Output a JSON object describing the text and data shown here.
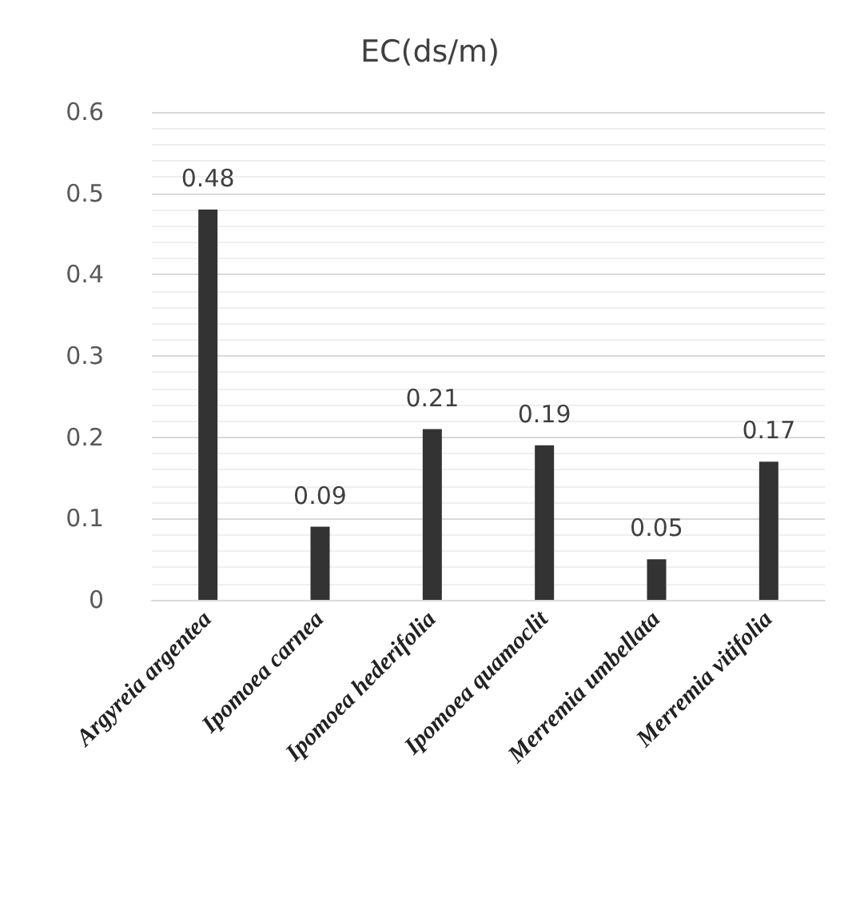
{
  "chart_data": {
    "type": "bar",
    "title": "EC(ds/m)",
    "categories": [
      "Argyreia argentea",
      "Ipomoea carnea",
      "Ipomoea hederifolia",
      "Ipomoea quamoclit",
      "Merremia umbellata",
      "Merremia vitifolia"
    ],
    "values": [
      0.48,
      0.09,
      0.21,
      0.19,
      0.05,
      0.17
    ],
    "color": "#333333",
    "ylim": [
      0,
      0.6
    ],
    "yticks": [
      0,
      0.1,
      0.2,
      0.3,
      0.4,
      0.5,
      0.6
    ],
    "grid": true,
    "data_labels": true
  }
}
